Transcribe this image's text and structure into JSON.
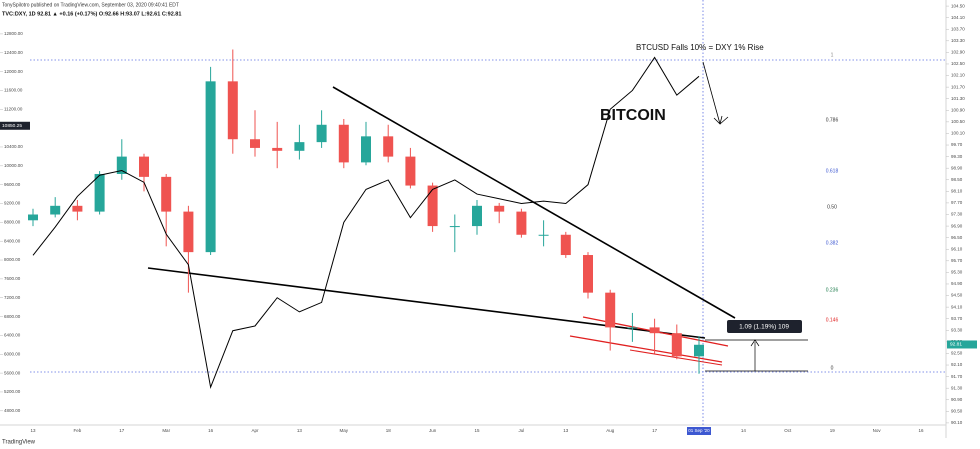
{
  "chart_data": {
    "type": "candlestick",
    "title": "TonySpilotro published on TradingView.com, September 03, 2020 09:40:41 EDT",
    "subtitle": "TVC:DXY, 1D 92.81 ▲ +0.16 (+0.17%) O:92.66 H:93.07 L:92.61 C:92.81",
    "annotations": [
      "BTCUSD Falls 10% = DXY 1% Rise",
      "1.09 (1.19%) 109"
    ],
    "fib_labels": [
      "1",
      "0.786",
      "0.618",
      "0.50",
      "0.382",
      "0.236",
      "0.146",
      "0"
    ],
    "brand": "TradingView",
    "categories": [
      "13",
      null,
      "Feb",
      null,
      "17",
      null,
      "Mar",
      null,
      "16",
      null,
      "Apr",
      null,
      "13",
      null,
      "May",
      null,
      "18",
      null,
      "Jun",
      null,
      "15",
      null,
      "Jul",
      null,
      "13",
      null,
      "Aug",
      null,
      "17",
      null,
      "01 Sep '20",
      null,
      "14",
      null,
      "Oct",
      null,
      "19",
      null,
      "Nov",
      null,
      "16"
    ],
    "series": [
      {
        "axis": "y2",
        "up_color": "#26a69a",
        "down_color": "#ef5350",
        "open": [
          97.1,
          97.3,
          97.6,
          97.4,
          98.7,
          99.3,
          98.6,
          97.4,
          96.0,
          101.9,
          99.9,
          99.6,
          99.5,
          99.8,
          100.4,
          99.1,
          100.0,
          99.3,
          98.3,
          96.9,
          96.9,
          97.6,
          97.4,
          96.6,
          96.6,
          95.9,
          94.6,
          93.4,
          93.4,
          93.2,
          92.4,
          null,
          null,
          null,
          null,
          null,
          null,
          null,
          null,
          null,
          null
        ],
        "high": [
          97.5,
          97.9,
          97.8,
          98.8,
          99.9,
          99.4,
          98.7,
          97.6,
          102.4,
          103.0,
          100.9,
          100.5,
          100.4,
          100.9,
          100.6,
          100.5,
          100.4,
          99.6,
          98.4,
          97.3,
          97.8,
          97.7,
          97.5,
          97.1,
          96.7,
          96.0,
          94.7,
          93.9,
          93.7,
          93.5,
          93.1,
          null,
          null,
          null,
          null,
          null,
          null,
          null,
          null,
          null,
          null
        ],
        "low": [
          96.9,
          97.2,
          97.1,
          97.3,
          98.5,
          98.1,
          96.2,
          94.6,
          95.9,
          99.4,
          99.3,
          98.9,
          99.2,
          99.6,
          98.9,
          99.0,
          99.1,
          98.2,
          96.7,
          96.0,
          96.6,
          97.0,
          96.5,
          96.2,
          95.8,
          94.4,
          92.6,
          92.9,
          92.5,
          92.3,
          91.8,
          null,
          null,
          null,
          null,
          null,
          null,
          null,
          null,
          null,
          null
        ],
        "close": [
          97.3,
          97.6,
          97.4,
          98.7,
          99.3,
          98.6,
          97.4,
          96.0,
          101.9,
          99.9,
          99.6,
          99.5,
          99.8,
          100.4,
          99.1,
          100.0,
          99.3,
          98.3,
          96.9,
          96.9,
          97.6,
          97.4,
          96.6,
          96.6,
          95.9,
          94.6,
          93.4,
          93.4,
          93.2,
          92.4,
          92.8,
          null,
          null,
          null,
          null,
          null,
          null,
          null,
          null,
          null,
          null
        ]
      },
      {
        "name": "BITCOIN",
        "type": "line",
        "axis": "y",
        "color": "#000000",
        "values": [
          8100,
          8700,
          9350,
          9800,
          9900,
          9650,
          8550,
          7900,
          5300,
          6500,
          6600,
          7200,
          6900,
          7100,
          8800,
          9500,
          9700,
          8900,
          9500,
          9700,
          9400,
          9300,
          9200,
          9250,
          9200,
          9600,
          11200,
          11600,
          12300,
          11500,
          11900,
          null,
          null,
          null,
          null,
          null,
          null,
          null,
          null,
          null,
          null
        ]
      }
    ],
    "last_price": 92.81,
    "left_marker": 10850.25,
    "ylim": [
      4180,
      13520
    ],
    "yticks": [
      {
        "value": 4800,
        "label": "4800.00"
      },
      {
        "value": 5200,
        "label": "5200.00"
      },
      {
        "value": 5600,
        "label": "5600.00"
      },
      {
        "value": 6000,
        "label": "6000.00"
      },
      {
        "value": 6400,
        "label": "6400.00"
      },
      {
        "value": 6800,
        "label": "6800.00"
      },
      {
        "value": 7200,
        "label": "7200.00"
      },
      {
        "value": 7600,
        "label": "7600.00"
      },
      {
        "value": 8000,
        "label": "8000.00"
      },
      {
        "value": 8400,
        "label": "8400.00"
      },
      {
        "value": 8800,
        "label": "8800.00"
      },
      {
        "value": 9200,
        "label": "9200.00"
      },
      {
        "value": 9600,
        "label": "9600.00"
      },
      {
        "value": 10000,
        "label": "10000.00"
      },
      {
        "value": 10400,
        "label": "10400.00"
      },
      {
        "value": 10800,
        "label": "10800.00"
      },
      {
        "value": 11200,
        "label": "11200.00"
      },
      {
        "value": 11600,
        "label": "11600.00"
      },
      {
        "value": 12000,
        "label": "12000.00"
      },
      {
        "value": 12400,
        "label": "12400.00"
      },
      {
        "value": 12800,
        "label": "12800.00"
      }
    ],
    "y2lim": [
      89.51,
      104.71
    ],
    "y2ticks": [
      {
        "value": 104.5,
        "label": "104.50"
      },
      {
        "value": 104.1,
        "label": "104.10"
      },
      {
        "value": 103.7,
        "label": "103.70"
      },
      {
        "value": 103.3,
        "label": "103.30"
      },
      {
        "value": 102.9,
        "label": "102.90"
      },
      {
        "value": 102.5,
        "label": "102.50"
      },
      {
        "value": 102.1,
        "label": "102.10"
      },
      {
        "value": 101.7,
        "label": "101.70"
      },
      {
        "value": 101.3,
        "label": "101.30"
      },
      {
        "value": 100.9,
        "label": "100.90"
      },
      {
        "value": 100.5,
        "label": "100.50"
      },
      {
        "value": 100.1,
        "label": "100.10"
      },
      {
        "value": 99.7,
        "label": "99.70"
      },
      {
        "value": 99.3,
        "label": "99.30"
      },
      {
        "value": 98.9,
        "label": "98.90"
      },
      {
        "value": 98.5,
        "label": "98.50"
      },
      {
        "value": 98.1,
        "label": "98.10"
      },
      {
        "value": 97.7,
        "label": "97.70"
      },
      {
        "value": 97.3,
        "label": "97.30"
      },
      {
        "value": 96.9,
        "label": "96.90"
      },
      {
        "value": 96.5,
        "label": "96.50"
      },
      {
        "value": 96.1,
        "label": "96.10"
      },
      {
        "value": 95.7,
        "label": "95.70"
      },
      {
        "value": 95.3,
        "label": "95.30"
      },
      {
        "value": 94.9,
        "label": "94.90"
      },
      {
        "value": 94.5,
        "label": "94.50"
      },
      {
        "value": 94.1,
        "label": "94.10"
      },
      {
        "value": 93.7,
        "label": "93.70"
      },
      {
        "value": 93.3,
        "label": "93.30"
      },
      {
        "value": 92.9,
        "label": "92.90"
      },
      {
        "value": 92.5,
        "label": "92.50"
      },
      {
        "value": 92.1,
        "label": "92.10"
      },
      {
        "value": 91.7,
        "label": "91.70"
      },
      {
        "value": 91.3,
        "label": "91.30"
      },
      {
        "value": 90.9,
        "label": "90.90"
      },
      {
        "value": 90.5,
        "label": "90.50"
      },
      {
        "value": 90.1,
        "label": "90.10"
      }
    ],
    "grid": false
  }
}
